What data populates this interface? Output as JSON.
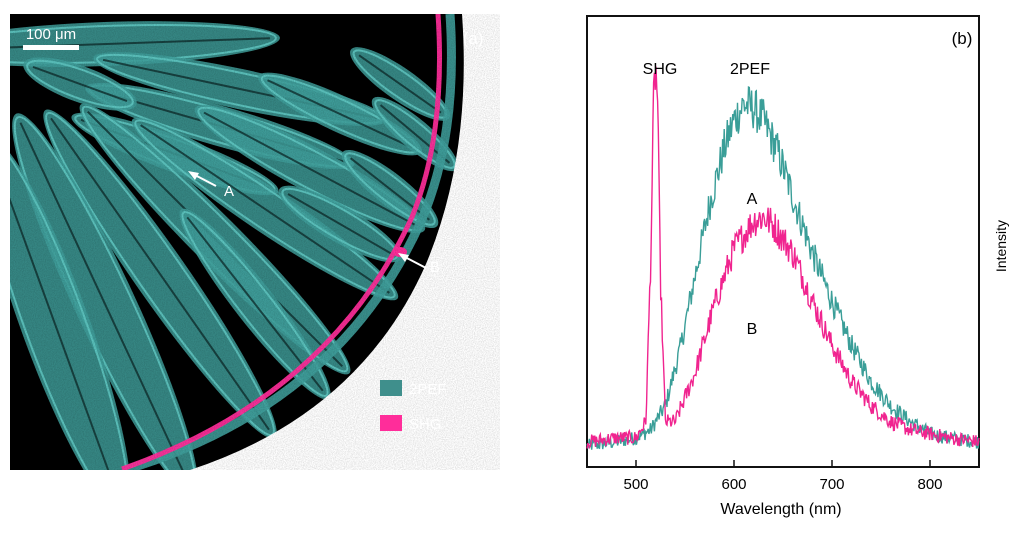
{
  "panel_a": {
    "label": "(a)",
    "scale_bar": "100 μm",
    "markers": [
      {
        "label": "A"
      },
      {
        "label": "B"
      }
    ],
    "legend": [
      {
        "label": "2PEF",
        "color": "#3f8f8c"
      },
      {
        "label": "SHG",
        "color": "#ff2d9a"
      }
    ],
    "colors": {
      "background": "#000000",
      "tissue": "#3f9f9b",
      "tissue_bright": "#5fc8c2",
      "collagen": "#ff2d9a"
    }
  },
  "chart_data": {
    "type": "line",
    "panel_label": "(b)",
    "xlabel": "Wavelength (nm)",
    "ylabel": "Intensity",
    "xlim": [
      450,
      850
    ],
    "x_ticks": [
      500,
      600,
      700,
      800
    ],
    "ylim": [
      0,
      1
    ],
    "grid": false,
    "annotations": [
      {
        "text": "SHG",
        "x": 520
      },
      {
        "text": "2PEF",
        "x": 617
      },
      {
        "text": "A",
        "x": 617
      },
      {
        "text": "B",
        "x": 617
      }
    ],
    "series": [
      {
        "name": "2PEF",
        "color": "#3a9e98",
        "x": [
          450,
          480,
          500,
          515,
          530,
          545,
          560,
          575,
          590,
          600,
          610,
          620,
          630,
          645,
          660,
          680,
          700,
          720,
          740,
          760,
          780,
          800,
          820,
          850
        ],
        "y": [
          0.04,
          0.05,
          0.06,
          0.08,
          0.14,
          0.28,
          0.46,
          0.64,
          0.78,
          0.85,
          0.89,
          0.88,
          0.85,
          0.77,
          0.66,
          0.52,
          0.4,
          0.29,
          0.2,
          0.14,
          0.1,
          0.07,
          0.06,
          0.05
        ]
      },
      {
        "name": "SHG",
        "color": "#f0248f",
        "x": [
          450,
          480,
          500,
          510,
          515,
          518,
          520,
          522,
          525,
          530,
          540,
          560,
          580,
          600,
          620,
          630,
          640,
          660,
          680,
          700,
          720,
          740,
          760,
          780,
          800,
          820,
          850
        ],
        "y": [
          0.05,
          0.06,
          0.06,
          0.1,
          0.5,
          0.9,
          0.98,
          0.9,
          0.45,
          0.1,
          0.1,
          0.22,
          0.39,
          0.53,
          0.6,
          0.61,
          0.59,
          0.52,
          0.4,
          0.29,
          0.2,
          0.14,
          0.1,
          0.08,
          0.07,
          0.06,
          0.05
        ]
      }
    ]
  }
}
